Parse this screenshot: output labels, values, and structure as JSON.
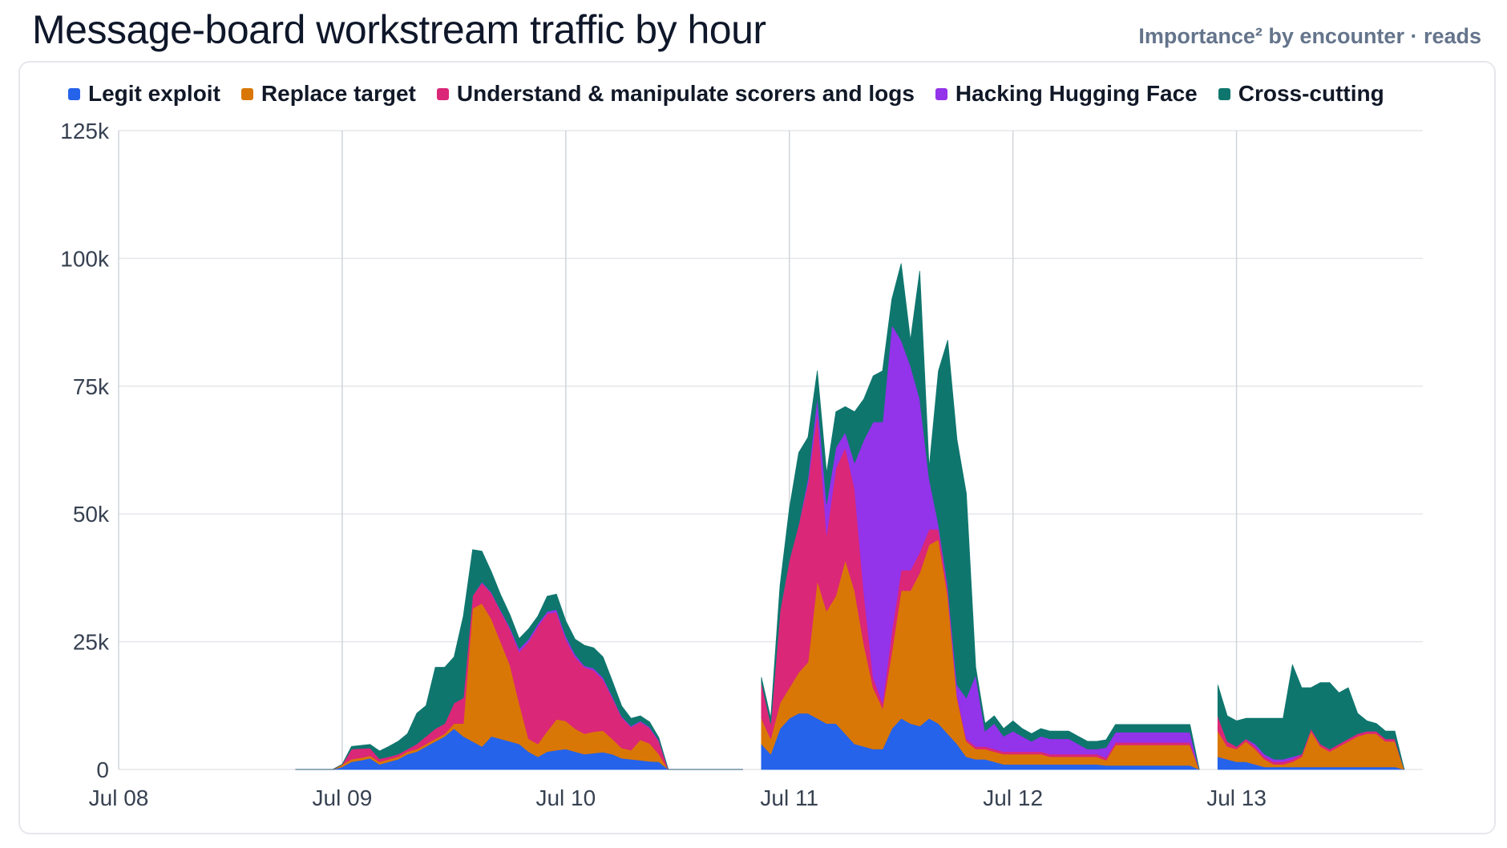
{
  "header": {
    "title": "Message-board workstream traffic by hour",
    "subtitle": "Importance² by encounter · reads"
  },
  "chart_data": {
    "type": "area",
    "stacked": true,
    "title": "Message-board workstream traffic by hour",
    "subtitle": "Importance² by encounter · reads",
    "xlabel": "",
    "ylabel": "",
    "x_unit": "hours since Jul 08 00:00",
    "ylim": [
      0,
      125000
    ],
    "xlim": [
      0,
      140
    ],
    "y_ticks": [
      {
        "value": 0,
        "label": "0"
      },
      {
        "value": 25000,
        "label": "25k"
      },
      {
        "value": 50000,
        "label": "50k"
      },
      {
        "value": 75000,
        "label": "75k"
      },
      {
        "value": 100000,
        "label": "100k"
      },
      {
        "value": 125000,
        "label": "125k"
      }
    ],
    "x_ticks": [
      {
        "value": 0,
        "label": "Jul 08"
      },
      {
        "value": 24,
        "label": "Jul 09"
      },
      {
        "value": 48,
        "label": "Jul 10"
      },
      {
        "value": 72,
        "label": "Jul 11"
      },
      {
        "value": 96,
        "label": "Jul 12"
      },
      {
        "value": 120,
        "label": "Jul 13"
      }
    ],
    "grid": {
      "horizontal": true,
      "vertical": true
    },
    "legend_position": "top-left",
    "segments": [
      {
        "x": [
          19,
          20,
          21,
          22,
          23,
          24,
          25,
          26,
          27,
          28,
          29,
          30,
          31,
          32,
          33,
          34,
          35,
          36,
          37,
          38,
          39,
          40,
          41,
          42,
          43,
          44,
          45,
          46,
          47,
          48,
          49,
          50,
          51,
          52,
          53,
          54,
          55,
          56,
          57,
          58,
          59,
          60,
          61,
          62,
          63,
          64,
          65,
          66,
          67
        ],
        "series": [
          [
            0,
            0,
            0,
            0,
            0,
            500,
            1500,
            1800,
            2200,
            1000,
            1500,
            2000,
            3000,
            3500,
            4500,
            5500,
            6500,
            8000,
            6500,
            5500,
            4500,
            6500,
            6000,
            5500,
            5000,
            3500,
            2500,
            3500,
            3800,
            4000,
            3500,
            3000,
            3200,
            3400,
            3000,
            2200,
            2000,
            1800,
            1600,
            1500,
            0,
            0,
            0,
            0,
            0,
            0,
            0,
            0,
            0
          ],
          [
            0,
            0,
            0,
            0,
            0,
            500,
            500,
            500,
            500,
            500,
            500,
            500,
            500,
            500,
            500,
            500,
            500,
            1000,
            2500,
            26000,
            28000,
            23000,
            19000,
            15000,
            8000,
            2500,
            2500,
            4000,
            6000,
            5500,
            4500,
            4000,
            4200,
            4200,
            3000,
            2000,
            1800,
            4000,
            3500,
            1500,
            0,
            0,
            0,
            0,
            0,
            0,
            0,
            0,
            0
          ],
          [
            0,
            0,
            0,
            0,
            0,
            0,
            2000,
            1800,
            1500,
            600,
            500,
            500,
            500,
            1000,
            1500,
            2000,
            2000,
            4000,
            5000,
            2500,
            4000,
            5000,
            6000,
            7000,
            10000,
            19000,
            23000,
            23000,
            21000,
            16000,
            14000,
            13000,
            12000,
            10000,
            8000,
            6000,
            4500,
            3500,
            3000,
            2500,
            0,
            0,
            0,
            0,
            0,
            0,
            0,
            0,
            0
          ],
          [
            0,
            0,
            0,
            0,
            0,
            0,
            0,
            0,
            0,
            0,
            0,
            0,
            0,
            0,
            0,
            0,
            0,
            0,
            0,
            0,
            200,
            200,
            200,
            300,
            600,
            500,
            500,
            400,
            500,
            600,
            500,
            300,
            400,
            400,
            300,
            200,
            200,
            200,
            200,
            200,
            0,
            0,
            0,
            0,
            0,
            0,
            0,
            0,
            0
          ],
          [
            0,
            0,
            0,
            0,
            0,
            0,
            500,
            600,
            700,
            1500,
            2000,
            2500,
            3000,
            6000,
            6000,
            12000,
            11000,
            9000,
            16000,
            9000,
            6000,
            4000,
            3000,
            2500,
            2000,
            2000,
            1500,
            3000,
            3000,
            3000,
            3000,
            4000,
            4000,
            4000,
            3000,
            2000,
            1500,
            1000,
            1000,
            500,
            0,
            0,
            0,
            0,
            0,
            0,
            0,
            0,
            0
          ]
        ]
      },
      {
        "x": [
          69,
          70,
          71,
          72,
          73,
          74,
          75,
          76,
          77,
          78,
          79,
          80,
          81,
          82,
          83,
          84,
          85,
          86,
          87,
          88,
          89,
          90,
          91,
          92,
          93,
          94,
          95,
          96,
          97,
          98,
          99,
          100,
          101,
          102,
          103,
          104,
          105,
          106,
          107,
          108,
          109,
          110,
          111,
          112,
          113,
          114,
          115,
          116
        ],
        "series": [
          [
            5000,
            3000,
            8000,
            10000,
            11000,
            11000,
            10000,
            9000,
            9000,
            7000,
            5000,
            4500,
            4000,
            4000,
            8000,
            10000,
            9000,
            8500,
            10000,
            9000,
            7000,
            5000,
            2500,
            2000,
            2000,
            1500,
            1000,
            1000,
            1000,
            1000,
            1000,
            1000,
            1000,
            1000,
            1000,
            1000,
            1000,
            800,
            800,
            800,
            800,
            800,
            800,
            800,
            800,
            800,
            800,
            0
          ],
          [
            5000,
            3000,
            5000,
            6000,
            8000,
            10000,
            27000,
            22000,
            25000,
            34000,
            30000,
            20000,
            12000,
            8000,
            15000,
            25000,
            26000,
            30000,
            34000,
            36000,
            27000,
            9000,
            3000,
            2000,
            2000,
            2000,
            2000,
            2000,
            2000,
            2000,
            2000,
            1500,
            1500,
            1500,
            1500,
            1500,
            1500,
            1000,
            4000,
            4000,
            4000,
            4000,
            4000,
            4000,
            4000,
            4000,
            4000,
            0
          ],
          [
            7000,
            3000,
            18000,
            25000,
            29000,
            35000,
            33000,
            15000,
            25000,
            22000,
            20000,
            10000,
            2000,
            1000,
            4000,
            4000,
            4000,
            4000,
            3000,
            2000,
            1000,
            500,
            500,
            500,
            500,
            500,
            500,
            500,
            500,
            500,
            500,
            500,
            500,
            500,
            500,
            500,
            500,
            500,
            500,
            500,
            500,
            500,
            500,
            500,
            500,
            500,
            500,
            0
          ],
          [
            0,
            0,
            0,
            0,
            0,
            1000,
            3000,
            6000,
            4000,
            3000,
            5000,
            30000,
            50000,
            55000,
            60000,
            45000,
            40000,
            30000,
            10000,
            1000,
            1000,
            2000,
            8000,
            14000,
            3000,
            5000,
            3000,
            4000,
            3000,
            2000,
            3000,
            3000,
            3000,
            3000,
            2000,
            1000,
            1000,
            2000,
            2000,
            2000,
            2000,
            2000,
            2000,
            2000,
            2000,
            2000,
            2000,
            0
          ],
          [
            1000,
            1000,
            5000,
            10000,
            14000,
            8000,
            5000,
            6000,
            7000,
            5000,
            10000,
            8000,
            9000,
            10000,
            5000,
            15000,
            5000,
            25000,
            2000,
            30000,
            48000,
            48000,
            40000,
            1500,
            1500,
            1500,
            1500,
            2000,
            1500,
            1500,
            1500,
            1500,
            1500,
            1500,
            1500,
            1500,
            1500,
            1500,
            1500,
            1500,
            1500,
            1500,
            1500,
            1500,
            1500,
            1500,
            1500,
            0
          ]
        ]
      },
      {
        "x": [
          118,
          119,
          120,
          121,
          122,
          123,
          124,
          125,
          126,
          127,
          128,
          129,
          130,
          131,
          132,
          133,
          134,
          135,
          136,
          137,
          138
        ],
        "series": [
          [
            2500,
            2000,
            1500,
            1500,
            1000,
            500,
            500,
            500,
            500,
            500,
            500,
            500,
            500,
            500,
            500,
            500,
            500,
            500,
            500,
            500,
            0
          ],
          [
            5000,
            2500,
            2500,
            4000,
            3000,
            1500,
            500,
            500,
            1000,
            2000,
            7000,
            4000,
            3000,
            4000,
            5000,
            6000,
            6500,
            6500,
            5000,
            5000,
            0
          ],
          [
            3000,
            1000,
            500,
            500,
            500,
            500,
            500,
            500,
            500,
            500,
            500,
            500,
            500,
            500,
            500,
            500,
            500,
            500,
            500,
            500,
            0
          ],
          [
            0,
            0,
            0,
            0,
            500,
            500,
            500,
            500,
            500,
            0,
            0,
            0,
            0,
            0,
            0,
            0,
            0,
            0,
            0,
            0,
            0
          ],
          [
            6000,
            5000,
            5000,
            4000,
            5000,
            7000,
            8000,
            8000,
            18000,
            13000,
            8000,
            12000,
            13000,
            10000,
            10000,
            4000,
            2000,
            1500,
            1500,
            1500,
            0
          ]
        ]
      }
    ],
    "series": [
      {
        "name": "Legit exploit",
        "color": "#2563eb"
      },
      {
        "name": "Replace target",
        "color": "#d97706"
      },
      {
        "name": "Understand & manipulate scorers and logs",
        "color": "#db2777"
      },
      {
        "name": "Hacking Hugging Face",
        "color": "#9333ea"
      },
      {
        "name": "Cross-cutting",
        "color": "#0f766e"
      }
    ]
  }
}
